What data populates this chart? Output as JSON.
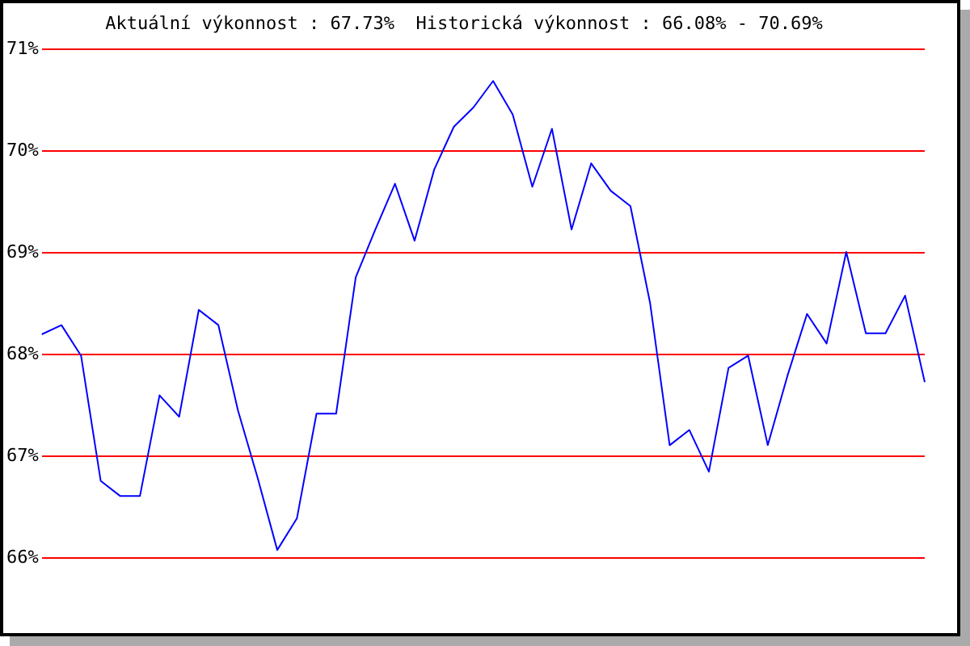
{
  "chart_data": {
    "type": "line",
    "title": "Aktuální výkonnost : 67.73%  Historická výkonnost : 66.08% - 70.69%",
    "categories": [
      null,
      null,
      null,
      null,
      null,
      null,
      null,
      null,
      null,
      null,
      null,
      null,
      null,
      null,
      null,
      null,
      null,
      null,
      null,
      null,
      null,
      null,
      null,
      null,
      null,
      null,
      null,
      null,
      null,
      null,
      null,
      null,
      null,
      null,
      null,
      null,
      null,
      null,
      null,
      null,
      null,
      null,
      null,
      null,
      null,
      null
    ],
    "series": [
      {
        "color": "#0000ff",
        "values": [
          68.2,
          68.29,
          67.99,
          66.76,
          66.61,
          66.61,
          67.6,
          67.39,
          68.44,
          68.29,
          67.45,
          66.79,
          66.08,
          66.39,
          67.42,
          67.42,
          68.76,
          69.23,
          69.68,
          69.12,
          69.82,
          70.24,
          70.43,
          70.69,
          70.36,
          69.65,
          70.22,
          69.23,
          69.88,
          69.61,
          69.46,
          68.51,
          67.11,
          67.26,
          66.85,
          67.87,
          67.99,
          67.11,
          67.79,
          68.4,
          68.11,
          69.01,
          68.21,
          68.21,
          68.58,
          67.73
        ]
      }
    ],
    "ylim": [
      66,
      71
    ],
    "yticks": [
      {
        "value": 66,
        "label": "66%"
      },
      {
        "value": 67,
        "label": "67%"
      },
      {
        "value": 68,
        "label": "68%"
      },
      {
        "value": 69,
        "label": "69%"
      },
      {
        "value": 70,
        "label": "70%"
      },
      {
        "value": 71,
        "label": "71%"
      }
    ],
    "grid": "y",
    "legend": false,
    "marker": "none",
    "line_style": "solid"
  }
}
